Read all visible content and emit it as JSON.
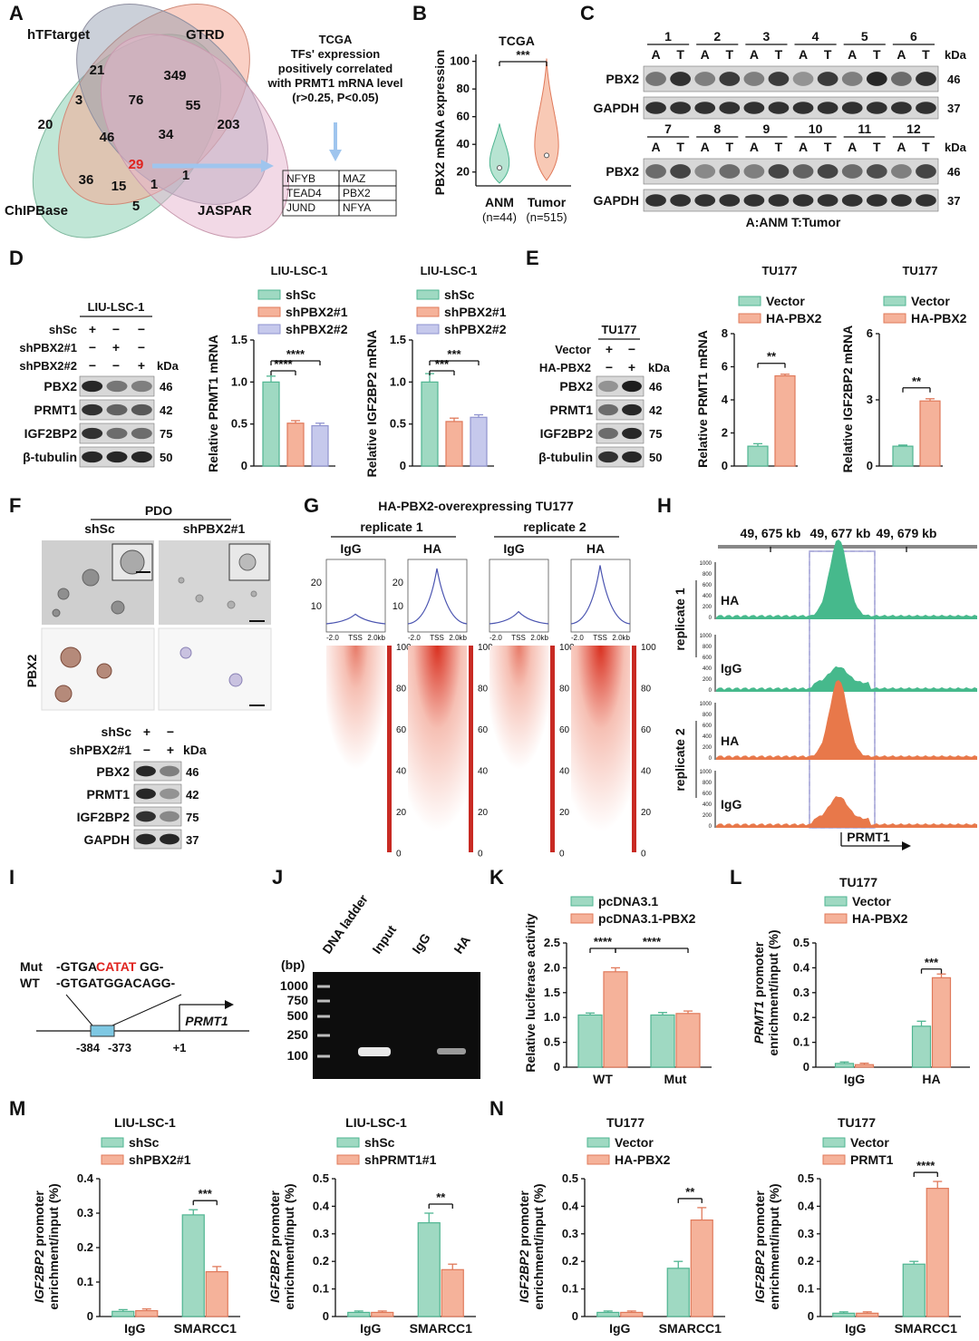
{
  "panels": [
    "A",
    "B",
    "C",
    "D",
    "E",
    "F",
    "G",
    "H",
    "I",
    "J",
    "K",
    "L",
    "M",
    "N"
  ],
  "A": {
    "sets": [
      "hTFtarget",
      "GTRD",
      "ChIPBase",
      "JASPAR"
    ],
    "counts": [
      "21",
      "349",
      "20",
      "3",
      "76",
      "55",
      "203",
      "46",
      "34",
      "29",
      "36",
      "15",
      "1",
      "1",
      "5"
    ],
    "tcga_text": [
      "TCGA",
      "TFs' expression",
      "positively correlated",
      "with PRMT1 mRNA level",
      "(r>0.25, P<0.05)"
    ],
    "tf_table": [
      [
        "NFYB",
        "MAZ"
      ],
      [
        "TEAD4",
        "PBX2"
      ],
      [
        "JUND",
        "NFYA"
      ]
    ]
  },
  "B": {
    "title": "TCGA",
    "ylabel": "PBX2 mRNA expression",
    "sig": "***",
    "yticks": [
      "20",
      "40",
      "60",
      "80",
      "100"
    ],
    "groups": [
      "ANM",
      "Tumor"
    ],
    "ns": [
      "(n=44)",
      "(n=515)"
    ]
  },
  "C": {
    "pairs_top": [
      "1",
      "2",
      "3",
      "4",
      "5",
      "6"
    ],
    "pairs_bottom": [
      "7",
      "8",
      "9",
      "10",
      "11",
      "12"
    ],
    "sub": [
      "A",
      "T"
    ],
    "kda": "kDa",
    "rows": [
      {
        "name": "PBX2",
        "kda": "46"
      },
      {
        "name": "GAPDH",
        "kda": "37"
      }
    ],
    "legend": "A:ANM   T:Tumor"
  },
  "D": {
    "blot_title": "LIU-LSC-1",
    "conds": [
      "shSc",
      "shPBX2#1",
      "shPBX2#2"
    ],
    "signs": [
      [
        "+",
        "−",
        "−"
      ],
      [
        "−",
        "+",
        "−"
      ],
      [
        "−",
        "−",
        "+"
      ]
    ],
    "kda": "kDa",
    "rows": [
      {
        "name": "PBX2",
        "kda": "46"
      },
      {
        "name": "PRMT1",
        "kda": "42"
      },
      {
        "name": "IGF2BP2",
        "kda": "75"
      },
      {
        "name": "β-tubulin",
        "kda": "50"
      }
    ],
    "legend": [
      "shSc",
      "shPBX2#1",
      "shPBX2#2"
    ],
    "charts": [
      {
        "title": "LIU-LSC-1",
        "ylabel": "Relative PRMT1 mRNA",
        "yticks": [
          "0",
          "0.5",
          "1.0",
          "1.5"
        ],
        "sig": [
          "****",
          "****"
        ]
      },
      {
        "title": "LIU-LSC-1",
        "ylabel": "Relative IGF2BP2 mRNA",
        "yticks": [
          "0",
          "0.5",
          "1.0",
          "1.5"
        ],
        "sig": [
          "***",
          "***"
        ]
      }
    ]
  },
  "E": {
    "blot_title": "TU177",
    "conds": [
      "Vector",
      "HA-PBX2"
    ],
    "signs": [
      [
        "+",
        "−"
      ],
      [
        "−",
        "+"
      ]
    ],
    "kda": "kDa",
    "rows": [
      {
        "name": "PBX2",
        "kda": "46"
      },
      {
        "name": "PRMT1",
        "kda": "42"
      },
      {
        "name": "IGF2BP2",
        "kda": "75"
      },
      {
        "name": "β-tubulin",
        "kda": "50"
      }
    ],
    "legend": [
      "Vector",
      "HA-PBX2"
    ],
    "charts": [
      {
        "title": "TU177",
        "ylabel": "Relative PRMT1 mRNA",
        "yticks": [
          "0",
          "2",
          "4",
          "6",
          "8"
        ],
        "sig": "**"
      },
      {
        "title": "TU177",
        "ylabel": "Relative IGF2BP2 mRNA",
        "yticks": [
          "0",
          "3",
          "6"
        ],
        "sig": "**"
      }
    ]
  },
  "F": {
    "title": "PDO",
    "cols": [
      "shSc",
      "shPBX2#1"
    ],
    "row_label": "PBX2",
    "conds": [
      "shSc",
      "shPBX2#1"
    ],
    "signs": [
      [
        "+",
        "−"
      ],
      [
        "−",
        "+"
      ]
    ],
    "kda": "kDa",
    "rows": [
      {
        "name": "PBX2",
        "kda": "46"
      },
      {
        "name": "PRMT1",
        "kda": "42"
      },
      {
        "name": "IGF2BP2",
        "kda": "75"
      },
      {
        "name": "GAPDH",
        "kda": "37"
      }
    ]
  },
  "G": {
    "title": "HA-PBX2-overexpressing TU177",
    "replicates": [
      "replicate 1",
      "replicate 2"
    ],
    "cols": [
      "IgG",
      "HA",
      "IgG",
      "HA"
    ],
    "profile_ticks": [
      "20",
      "10"
    ],
    "xticks": [
      "-2.0",
      "TSS",
      "2.0kb"
    ],
    "scale": [
      "100",
      "80",
      "60",
      "40",
      "20",
      "0"
    ]
  },
  "H": {
    "coords": [
      "49, 675 kb",
      "49, 677 kb",
      "49, 679 kb"
    ],
    "replicates": [
      "replicate 1",
      "replicate 2"
    ],
    "tracks": [
      "HA",
      "IgG",
      "HA",
      "IgG"
    ],
    "ticks": [
      "1000",
      "800",
      "600",
      "400",
      "200",
      "0"
    ],
    "gene": "PRMT1"
  },
  "I": {
    "mut_label": "Mut",
    "wt_label": "WT",
    "mut_seq": [
      "-GTGA",
      "CATAT",
      "GG-"
    ],
    "wt_seq": "-GTGATGGACAGG-",
    "positions": [
      "-384",
      "-373",
      "+1"
    ],
    "gene": "PRMT1"
  },
  "J": {
    "bp": "(bp)",
    "lanes": [
      "DNA ladder",
      "Input",
      "IgG",
      "HA"
    ],
    "markers": [
      "1000",
      "750",
      "500",
      "250",
      "100"
    ]
  },
  "K": {
    "legend": [
      "pcDNA3.1",
      "pcDNA3.1-PBX2"
    ],
    "ylabel": "Relative luciferase activity",
    "yticks": [
      "0",
      "0.5",
      "1.0",
      "1.5",
      "2.0",
      "2.5"
    ],
    "groups": [
      "WT",
      "Mut"
    ],
    "sig": [
      "****",
      "****"
    ]
  },
  "L": {
    "title": "TU177",
    "legend": [
      "Vector",
      "HA-PBX2"
    ],
    "ylabel_it": "PRMT1",
    "ylabel_rest": " promoter",
    "ylabel2": "enrichment/input (%)",
    "yticks": [
      "0",
      "0.1",
      "0.2",
      "0.3",
      "0.4",
      "0.5"
    ],
    "groups": [
      "IgG",
      "HA"
    ],
    "sig": "***"
  },
  "M": {
    "charts": [
      {
        "title": "LIU-LSC-1",
        "legend": [
          "shSc",
          "shPBX2#1"
        ],
        "yticks": [
          "0",
          "0.1",
          "0.2",
          "0.3",
          "0.4"
        ],
        "sig": "***"
      },
      {
        "title": "LIU-LSC-1",
        "legend": [
          "shSc",
          "shPRMT1#1"
        ],
        "yticks": [
          "0",
          "0.1",
          "0.2",
          "0.3",
          "0.4",
          "0.5"
        ],
        "sig": "**"
      }
    ]
  },
  "N": {
    "charts": [
      {
        "title": "TU177",
        "legend": [
          "Vector",
          "HA-PBX2"
        ],
        "yticks": [
          "0",
          "0.1",
          "0.2",
          "0.3",
          "0.4",
          "0.5"
        ],
        "sig": "**"
      },
      {
        "title": "TU177",
        "legend": [
          "Vector",
          "PRMT1"
        ],
        "yticks": [
          "0",
          "0.1",
          "0.2",
          "0.3",
          "0.4",
          "0.5"
        ],
        "sig": "****"
      }
    ]
  },
  "chip_ylabel_it": "IGF2BP2",
  "chip_ylabel_rest": " promoter",
  "chip_ylabel2": "enrichment/input (%)",
  "chip_groups": [
    "IgG",
    "SMARCC1"
  ],
  "colors": {
    "green": "#9fd9c2",
    "green_edge": "#4fb591",
    "orange": "#f5b29a",
    "orange_edge": "#e0795a",
    "lav": "#c6c9ec",
    "lav_edge": "#8f93cf",
    "track_green": "#46b98c",
    "track_orange": "#e8784a",
    "red": "#e0231e"
  },
  "chart_data": [
    {
      "panel": "B",
      "type": "violin",
      "categories": [
        "ANM",
        "Tumor"
      ],
      "ylim": [
        10,
        105
      ],
      "medians": [
        23,
        32
      ]
    },
    {
      "panel": "D1",
      "type": "bar",
      "categories": [
        "shSc",
        "shPBX2#1",
        "shPBX2#2"
      ],
      "values": [
        1.0,
        0.51,
        0.48
      ],
      "errors": [
        0.07,
        0.03,
        0.03
      ],
      "ylim": [
        0,
        1.5
      ]
    },
    {
      "panel": "D2",
      "type": "bar",
      "categories": [
        "shSc",
        "shPBX2#1",
        "shPBX2#2"
      ],
      "values": [
        1.0,
        0.53,
        0.58
      ],
      "errors": [
        0.1,
        0.04,
        0.03
      ],
      "ylim": [
        0,
        1.5
      ]
    },
    {
      "panel": "E1",
      "type": "bar",
      "categories": [
        "Vector",
        "HA-PBX2"
      ],
      "values": [
        1.2,
        5.45
      ],
      "errors": [
        0.15,
        0.1
      ],
      "ylim": [
        0,
        8
      ]
    },
    {
      "panel": "E2",
      "type": "bar",
      "categories": [
        "Vector",
        "HA-PBX2"
      ],
      "values": [
        0.9,
        2.95
      ],
      "errors": [
        0.05,
        0.1
      ],
      "ylim": [
        0,
        6
      ]
    },
    {
      "panel": "K",
      "type": "bar",
      "categories": [
        "WT",
        "Mut"
      ],
      "series": [
        {
          "name": "pcDNA3.1",
          "values": [
            1.05,
            1.05
          ],
          "errors": [
            0.04,
            0.05
          ]
        },
        {
          "name": "pcDNA3.1-PBX2",
          "values": [
            1.92,
            1.08
          ],
          "errors": [
            0.08,
            0.05
          ]
        }
      ],
      "ylim": [
        0,
        2.5
      ]
    },
    {
      "panel": "L",
      "type": "bar",
      "categories": [
        "IgG",
        "HA"
      ],
      "series": [
        {
          "name": "Vector",
          "values": [
            0.015,
            0.165
          ],
          "errors": [
            0.006,
            0.02
          ]
        },
        {
          "name": "HA-PBX2",
          "values": [
            0.01,
            0.36
          ],
          "errors": [
            0.006,
            0.015
          ]
        }
      ],
      "ylim": [
        0,
        0.5
      ]
    },
    {
      "panel": "M1",
      "type": "bar",
      "categories": [
        "IgG",
        "SMARCC1"
      ],
      "series": [
        {
          "name": "shSc",
          "values": [
            0.015,
            0.295
          ],
          "errors": [
            0.005,
            0.015
          ]
        },
        {
          "name": "shPBX2#1",
          "values": [
            0.017,
            0.13
          ],
          "errors": [
            0.005,
            0.015
          ]
        }
      ],
      "ylim": [
        0,
        0.4
      ]
    },
    {
      "panel": "M2",
      "type": "bar",
      "categories": [
        "IgG",
        "SMARCC1"
      ],
      "series": [
        {
          "name": "shSc",
          "values": [
            0.015,
            0.34
          ],
          "errors": [
            0.005,
            0.035
          ]
        },
        {
          "name": "shPRMT1#1",
          "values": [
            0.015,
            0.17
          ],
          "errors": [
            0.005,
            0.02
          ]
        }
      ],
      "ylim": [
        0,
        0.5
      ]
    },
    {
      "panel": "N1",
      "type": "bar",
      "categories": [
        "IgG",
        "SMARCC1"
      ],
      "series": [
        {
          "name": "Vector",
          "values": [
            0.015,
            0.175
          ],
          "errors": [
            0.005,
            0.025
          ]
        },
        {
          "name": "HA-PBX2",
          "values": [
            0.015,
            0.35
          ],
          "errors": [
            0.005,
            0.045
          ]
        }
      ],
      "ylim": [
        0,
        0.5
      ]
    },
    {
      "panel": "N2",
      "type": "bar",
      "categories": [
        "IgG",
        "SMARCC1"
      ],
      "series": [
        {
          "name": "Vector",
          "values": [
            0.012,
            0.19
          ],
          "errors": [
            0.005,
            0.01
          ]
        },
        {
          "name": "PRMT1",
          "values": [
            0.012,
            0.465
          ],
          "errors": [
            0.005,
            0.025
          ]
        }
      ],
      "ylim": [
        0,
        0.5
      ]
    }
  ]
}
